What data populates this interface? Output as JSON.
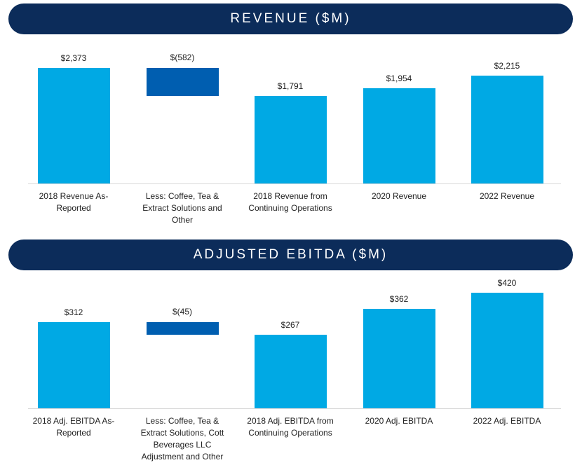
{
  "chart_data": [
    {
      "type": "waterfall",
      "title": "REVENUE ($M)",
      "categories": [
        "2018 Revenue As-Reported",
        "Less: Coffee, Tea & Extract Solutions and Other",
        "2018 Revenue from Continuing Operations",
        "2020 Revenue",
        "2022 Revenue"
      ],
      "values": [
        2373,
        -582,
        1791,
        1954,
        2215
      ],
      "value_labels": [
        "$2,373",
        "$(582)",
        "$1,791",
        "$1,954",
        "$2,215"
      ],
      "color": "#00a9e4",
      "negative_color": "#005eb0"
    },
    {
      "type": "waterfall",
      "title": "ADJUSTED EBITDA ($M)",
      "categories": [
        "2018 Adj. EBITDA As-Reported",
        "Less: Coffee, Tea & Extract Solutions, Cott Beverages LLC Adjustment and Other",
        "2018 Adj. EBITDA from Continuing Operations",
        "2020 Adj. EBITDA",
        "2022 Adj. EBITDA"
      ],
      "values": [
        312,
        -45,
        267,
        362,
        420
      ],
      "value_labels": [
        "$312",
        "$(45)",
        "$267",
        "$362",
        "$420"
      ],
      "color": "#00a9e4",
      "negative_color": "#005eb0"
    }
  ]
}
